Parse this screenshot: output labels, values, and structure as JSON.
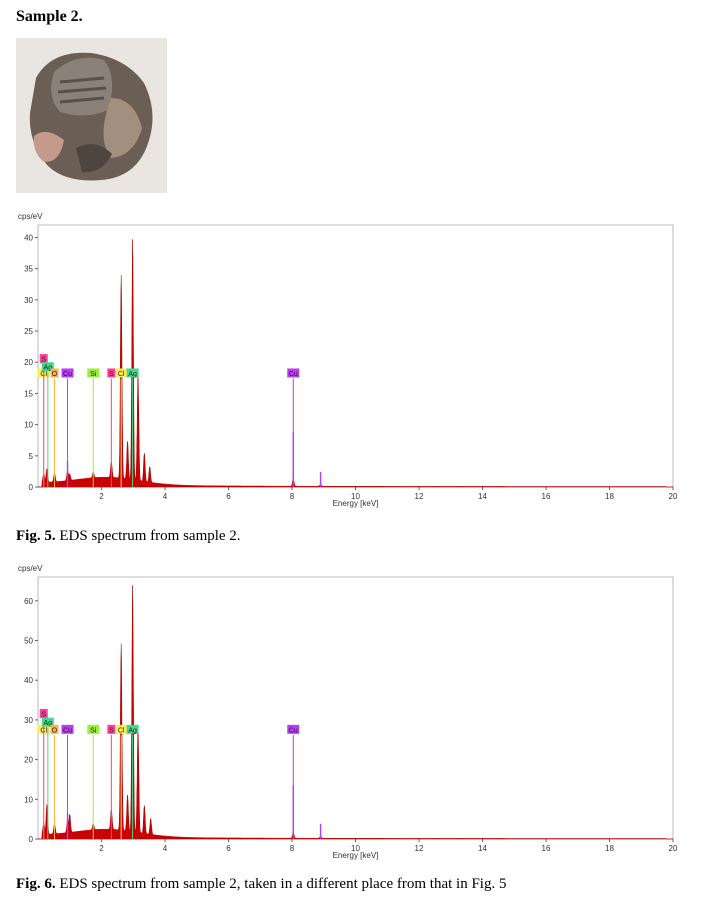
{
  "heading": "Sample 2.",
  "photo": {
    "description_icon": "mineral-sample-photo"
  },
  "colors": {
    "spectrum": "#cc0000",
    "S": "#ff3d9a",
    "Cl": "#ffee55",
    "Ag": "#44d98a",
    "O": "#ffb347",
    "Cu": "#b83cf0",
    "Si": "#99f03c"
  },
  "captions": [
    {
      "label": "Fig. 5.",
      "text": " EDS spectrum from sample 2."
    },
    {
      "label": "Fig. 6.",
      "text": " EDS spectrum from sample 2, taken in a different place from that in Fig. 5"
    }
  ],
  "chart_data": [
    {
      "type": "area",
      "ylabel": "cps/eV",
      "xlabel": "Energy [keV]",
      "xlim": [
        0,
        20
      ],
      "ylim": [
        0,
        42
      ],
      "xticks": [
        2,
        4,
        6,
        8,
        10,
        12,
        14,
        16,
        18,
        20
      ],
      "yticks": [
        0,
        5,
        10,
        15,
        20,
        25,
        30,
        35,
        40
      ],
      "peaks": [
        {
          "x": 0.18,
          "y": 1.5
        },
        {
          "x": 0.28,
          "y": 2.2
        },
        {
          "x": 0.52,
          "y": 1.4
        },
        {
          "x": 0.93,
          "y": 1.6
        },
        {
          "x": 1.0,
          "y": 1.0
        },
        {
          "x": 1.74,
          "y": 0.9
        },
        {
          "x": 2.31,
          "y": 2.5
        },
        {
          "x": 2.62,
          "y": 32.5
        },
        {
          "x": 2.82,
          "y": 6.0
        },
        {
          "x": 2.98,
          "y": 38.5
        },
        {
          "x": 3.15,
          "y": 17.0
        },
        {
          "x": 3.35,
          "y": 4.5
        },
        {
          "x": 3.52,
          "y": 2.5
        },
        {
          "x": 8.04,
          "y": 1.2
        },
        {
          "x": 8.9,
          "y": 0.3
        }
      ],
      "element_lines": [
        {
          "element": "Cl",
          "x": 0.18,
          "y": 18.2
        },
        {
          "element": "S",
          "x": 0.18,
          "y": 20.5
        },
        {
          "element": "Ag",
          "x": 0.31,
          "y": 19.2
        },
        {
          "element": "O",
          "x": 0.52,
          "y": 18.2
        },
        {
          "element": "Cu",
          "x": 0.93,
          "y": 18.2
        },
        {
          "element": "Si",
          "x": 1.74,
          "y": 18.2
        },
        {
          "element": "S",
          "x": 2.31,
          "y": 18.2
        },
        {
          "element": "Cl",
          "x": 2.62,
          "y": 18.2
        },
        {
          "element": "Ag",
          "x": 2.98,
          "y": 18.2
        },
        {
          "element": "Cu",
          "x": 8.04,
          "y": 18.2
        }
      ],
      "line_peaks": [
        {
          "x": 0.93,
          "y": 4.2
        },
        {
          "x": 8.04,
          "y": 8.8
        },
        {
          "x": 8.9,
          "y": 2.4
        }
      ]
    },
    {
      "type": "area",
      "ylabel": "cps/eV",
      "xlabel": "Energy [keV]",
      "xlim": [
        0,
        20
      ],
      "ylim": [
        0,
        66
      ],
      "xticks": [
        2,
        4,
        6,
        8,
        10,
        12,
        14,
        16,
        18,
        20
      ],
      "yticks": [
        0,
        10,
        20,
        30,
        40,
        50,
        60
      ],
      "peaks": [
        {
          "x": 0.18,
          "y": 3.0
        },
        {
          "x": 0.28,
          "y": 7.5
        },
        {
          "x": 0.52,
          "y": 2.5
        },
        {
          "x": 0.93,
          "y": 3.0
        },
        {
          "x": 1.0,
          "y": 4.5
        },
        {
          "x": 1.74,
          "y": 1.5
        },
        {
          "x": 2.31,
          "y": 5.0
        },
        {
          "x": 2.62,
          "y": 47.0
        },
        {
          "x": 2.82,
          "y": 9.0
        },
        {
          "x": 2.98,
          "y": 62.0
        },
        {
          "x": 3.15,
          "y": 27.0
        },
        {
          "x": 3.35,
          "y": 7.0
        },
        {
          "x": 3.55,
          "y": 4.0
        },
        {
          "x": 8.04,
          "y": 1.5
        },
        {
          "x": 8.9,
          "y": 0.5
        }
      ],
      "element_lines": [
        {
          "element": "Cl",
          "x": 0.18,
          "y": 27.5
        },
        {
          "element": "S",
          "x": 0.18,
          "y": 31.5
        },
        {
          "element": "Ag",
          "x": 0.31,
          "y": 29.3
        },
        {
          "element": "O",
          "x": 0.52,
          "y": 27.5
        },
        {
          "element": "Cu",
          "x": 0.93,
          "y": 27.5
        },
        {
          "element": "Si",
          "x": 1.74,
          "y": 27.5
        },
        {
          "element": "S",
          "x": 2.31,
          "y": 27.5
        },
        {
          "element": "Cl",
          "x": 2.62,
          "y": 27.5
        },
        {
          "element": "Ag",
          "x": 2.98,
          "y": 27.5
        },
        {
          "element": "Cu",
          "x": 8.04,
          "y": 27.5
        }
      ],
      "line_peaks": [
        {
          "x": 0.93,
          "y": 6.5
        },
        {
          "x": 8.04,
          "y": 13.5
        },
        {
          "x": 8.9,
          "y": 3.8
        }
      ]
    }
  ]
}
